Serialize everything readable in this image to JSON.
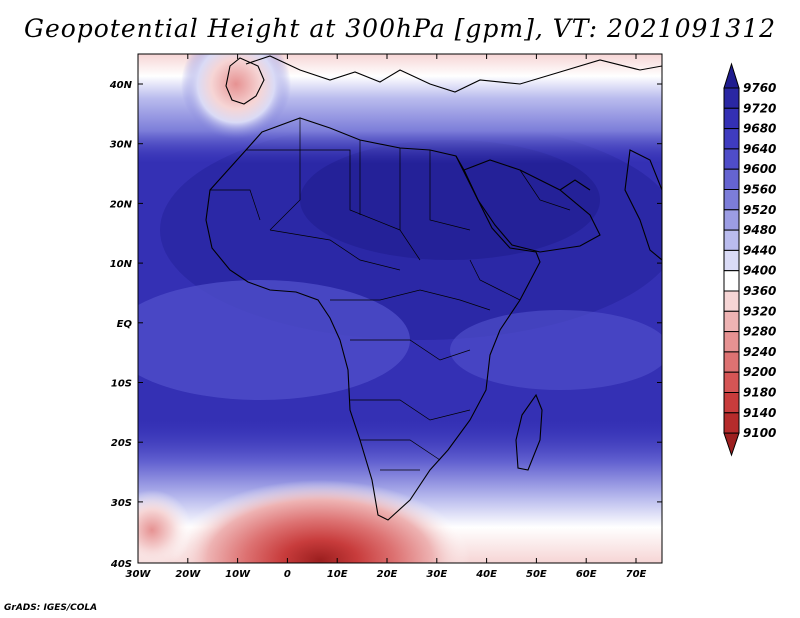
{
  "title": "Geopotential Height at 300hPa [gpm], VT: 2021091312",
  "credit": "GrADS: IGES/COLA",
  "lat_labels": [
    "40N",
    "30N",
    "20N",
    "10N",
    "EQ",
    "10S",
    "20S",
    "30S",
    "40S"
  ],
  "lon_labels": [
    "30W",
    "20W",
    "10W",
    "0",
    "10E",
    "20E",
    "30E",
    "40E",
    "50E",
    "60E",
    "70E"
  ],
  "colorbar": {
    "levels": [
      "9760",
      "9720",
      "9680",
      "9640",
      "9600",
      "9560",
      "9520",
      "9480",
      "9440",
      "9400",
      "9360",
      "9320",
      "9280",
      "9240",
      "9200",
      "9180",
      "9140",
      "9100"
    ],
    "colors": [
      "#1f1c8f",
      "#2a27a3",
      "#3430b4",
      "#3f3cc0",
      "#4f4dc9",
      "#6564d1",
      "#7c7dd9",
      "#9c9de4",
      "#babcee",
      "#dadbf6",
      "#ffffff",
      "#f6d5d5",
      "#eeb3b3",
      "#e69292",
      "#dd7272",
      "#d55555",
      "#c83c3c",
      "#b52b2b",
      "#9c1f1f"
    ]
  }
}
